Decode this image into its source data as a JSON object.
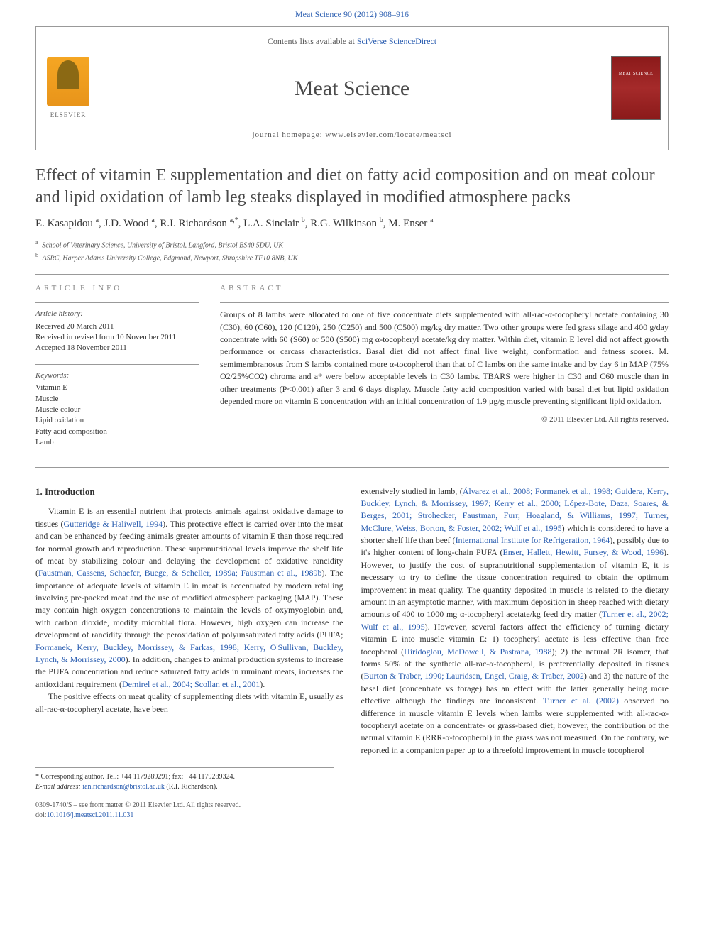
{
  "top_link": "Meat Science 90 (2012) 908–916",
  "header": {
    "contents_text": "Contents lists available at ",
    "contents_link": "SciVerse ScienceDirect",
    "journal_name": "Meat Science",
    "homepage_label": "journal homepage: ",
    "homepage_url": "www.elsevier.com/locate/meatsci",
    "elsevier_label": "ELSEVIER"
  },
  "title": "Effect of vitamin E supplementation and diet on fatty acid composition and on meat colour and lipid oxidation of lamb leg steaks displayed in modified atmosphere packs",
  "authors_html": "E. Kasapidou <sup>a</sup>, J.D. Wood <sup>a</sup>, R.I. Richardson <sup>a,*</sup>, L.A. Sinclair <sup>b</sup>, R.G. Wilkinson <sup>b</sup>, M. Enser <sup>a</sup>",
  "affiliations": [
    {
      "sup": "a",
      "text": "School of Veterinary Science, University of Bristol, Langford, Bristol BS40 5DU, UK"
    },
    {
      "sup": "b",
      "text": "ASRC, Harper Adams University College, Edgmond, Newport, Shropshire TF10 8NB, UK"
    }
  ],
  "article_info": {
    "heading": "ARTICLE INFO",
    "history_label": "Article history:",
    "history": [
      "Received 20 March 2011",
      "Received in revised form 10 November 2011",
      "Accepted 18 November 2011"
    ],
    "keywords_label": "Keywords:",
    "keywords": [
      "Vitamin E",
      "Muscle",
      "Muscle colour",
      "Lipid oxidation",
      "Fatty acid composition",
      "Lamb"
    ]
  },
  "abstract": {
    "heading": "ABSTRACT",
    "text": "Groups of 8 lambs were allocated to one of five concentrate diets supplemented with all-rac-α-tocopheryl acetate containing 30 (C30), 60 (C60), 120 (C120), 250 (C250) and 500 (C500) mg/kg dry matter. Two other groups were fed grass silage and 400 g/day concentrate with 60 (S60) or 500 (S500) mg α-tocopheryl acetate/kg dry matter. Within diet, vitamin E level did not affect growth performance or carcass characteristics. Basal diet did not affect final live weight, conformation and fatness scores. M. semimembranosus from S lambs contained more α-tocopherol than that of C lambs on the same intake and by day 6 in MAP (75% O2/25%CO2) chroma and a* were below acceptable levels in C30 lambs. TBARS were higher in C30 and C60 muscle than in other treatments (P<0.001) after 3 and 6 days display. Muscle fatty acid composition varied with basal diet but lipid oxidation depended more on vitamin E concentration with an initial concentration of 1.9 μg/g muscle preventing significant lipid oxidation.",
    "copyright": "© 2011 Elsevier Ltd. All rights reserved."
  },
  "body": {
    "section_heading": "1. Introduction",
    "col1_p1_pre": "Vitamin E is an essential nutrient that protects animals against oxidative damage to tissues (",
    "col1_p1_ref1": "Gutteridge & Haliwell, 1994",
    "col1_p1_mid1": "). This protective effect is carried over into the meat and can be enhanced by feeding animals greater amounts of vitamin E than those required for normal growth and reproduction. These supranutritional levels improve the shelf life of meat by stabilizing colour and delaying the development of oxidative rancidity (",
    "col1_p1_ref2": "Faustman, Cassens, Schaefer, Buege, & Scheller, 1989a; Faustman et al., 1989b",
    "col1_p1_mid2": "). The importance of adequate levels of vitamin E in meat is accentuated by modern retailing involving pre-packed meat and the use of modified atmosphere packaging (MAP). These may contain high oxygen concentrations to maintain the levels of oxymyoglobin and, with carbon dioxide, modify microbial flora. However, high oxygen can increase the development of rancidity through the peroxidation of polyunsaturated fatty acids (PUFA; ",
    "col1_p1_ref3": "Formanek, Kerry, Buckley, Morrissey, & Farkas, 1998; Kerry, O'Sullivan, Buckley, Lynch, & Morrissey, 2000",
    "col1_p1_mid3": "). In addition, changes to animal production systems to increase the PUFA concentration and reduce saturated fatty acids in ruminant meats, increases the antioxidant requirement (",
    "col1_p1_ref4": "Demirel et al., 2004; Scollan et al., 2001",
    "col1_p1_post": ").",
    "col1_p2": "The positive effects on meat quality of supplementing diets with vitamin E, usually as all-rac-α-tocopheryl acetate, have been",
    "col2_p1_pre": "extensively studied in lamb, (",
    "col2_p1_ref1": "Álvarez et al., 2008; Formanek et al., 1998; Guidera, Kerry, Buckley, Lynch, & Morrissey, 1997; Kerry et al., 2000; López-Bote, Daza, Soares, & Berges, 2001; Strohecker, Faustman, Furr, Hoagland, & Williams, 1997; Turner, McClure, Weiss, Borton, & Foster, 2002; Wulf et al., 1995",
    "col2_p1_mid1": ") which is considered to have a shorter shelf life than beef (",
    "col2_p1_ref2": "International Institute for Refrigeration, 1964",
    "col2_p1_mid2": "), possibly due to it's higher content of long-chain PUFA (",
    "col2_p1_ref3": "Enser, Hallett, Hewitt, Fursey, & Wood, 1996",
    "col2_p1_mid3": "). However, to justify the cost of supranutritional supplementation of vitamin E, it is necessary to try to define the tissue concentration required to obtain the optimum improvement in meat quality. The quantity deposited in muscle is related to the dietary amount in an asymptotic manner, with maximum deposition in sheep reached with dietary amounts of 400 to 1000 mg α-tocopheryl acetate/kg feed dry matter (",
    "col2_p1_ref4": "Turner et al., 2002; Wulf et al., 1995",
    "col2_p1_mid4": "). However, several factors affect the efficiency of turning dietary vitamin E into muscle vitamin E: 1) tocopheryl acetate is less effective than free tocopherol (",
    "col2_p1_ref5": "Hiridoglou, McDowell, & Pastrana, 1988",
    "col2_p1_mid5": "); 2) the natural 2R isomer, that forms 50% of the synthetic all-rac-α-tocopherol, is preferentially deposited in tissues (",
    "col2_p1_ref6": "Burton & Traber, 1990; Lauridsen, Engel, Craig, & Traber, 2002",
    "col2_p1_mid6": ") and 3) the nature of the basal diet (concentrate vs forage) has an effect with the latter generally being more effective although the findings are inconsistent. ",
    "col2_p1_ref7": "Turner et al. (2002)",
    "col2_p1_mid7": " observed no difference in muscle vitamin E levels when lambs were supplemented with all-rac-α-tocopheryl acetate on a concentrate- or grass-based diet; however, the contribution of the natural vitamin E (RRR-α-tocopherol) in the grass was not measured. On the contrary, we reported in a companion paper up to a threefold improvement in muscle tocopherol"
  },
  "footnote": {
    "corr": "* Corresponding author. Tel.: +44 1179289291; fax: +44 1179289324.",
    "email_label": "E-mail address: ",
    "email": "ian.richardson@bristol.ac.uk",
    "email_name": " (R.I. Richardson)."
  },
  "footer": {
    "line1": "0309-1740/$ – see front matter © 2011 Elsevier Ltd. All rights reserved.",
    "line2": "doi:10.1016/j.meatsci.2011.11.031"
  },
  "colors": {
    "link": "#2a5db0",
    "text": "#333333",
    "heading_gray": "#888888",
    "elsevier_orange": "#f5a623",
    "cover_red": "#8b1a1a"
  }
}
